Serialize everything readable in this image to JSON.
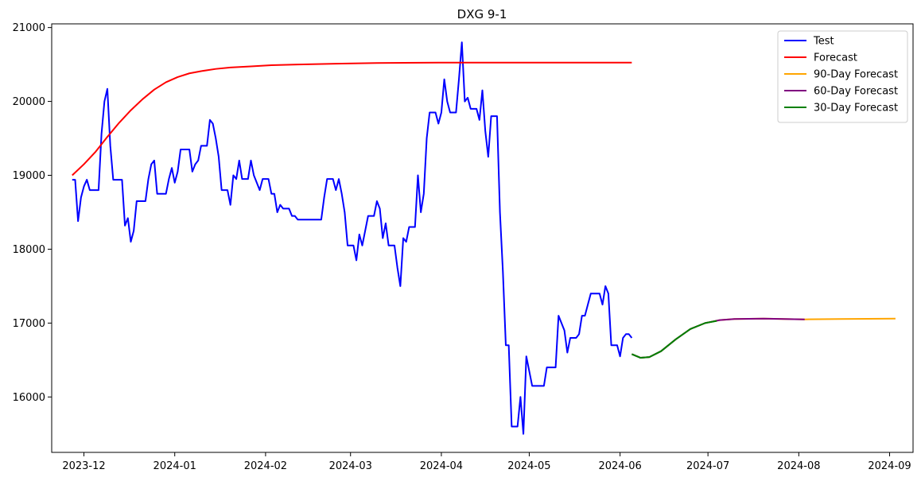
{
  "chart_data": {
    "type": "line",
    "title": "DXG 9-1",
    "xlabel": "",
    "ylabel": "",
    "x_ticks": [
      "2023-12",
      "2024-01",
      "2024-02",
      "2024-03",
      "2024-04",
      "2024-05",
      "2024-06",
      "2024-07",
      "2024-08",
      "2024-09"
    ],
    "y_ticks": [
      16000,
      17000,
      18000,
      19000,
      20000,
      21000
    ],
    "xlim": [
      "2023-11-20",
      "2024-09-09"
    ],
    "ylim": [
      15250,
      21050
    ],
    "grid": false,
    "legend_position": "top-right",
    "series": [
      {
        "name": "Test",
        "color": "#0000ff",
        "points": [
          [
            "2023-11-27",
            18940
          ],
          [
            "2023-11-28",
            18940
          ],
          [
            "2023-11-29",
            18380
          ],
          [
            "2023-11-30",
            18700
          ],
          [
            "2023-12-01",
            18850
          ],
          [
            "2023-12-02",
            18940
          ],
          [
            "2023-12-03",
            18800
          ],
          [
            "2023-12-05",
            18800
          ],
          [
            "2023-12-06",
            18800
          ],
          [
            "2023-12-07",
            19560
          ],
          [
            "2023-12-08",
            20000
          ],
          [
            "2023-12-09",
            20170
          ],
          [
            "2023-12-10",
            19400
          ],
          [
            "2023-12-11",
            18940
          ],
          [
            "2023-12-13",
            18940
          ],
          [
            "2023-12-14",
            18940
          ],
          [
            "2023-12-15",
            18320
          ],
          [
            "2023-12-16",
            18420
          ],
          [
            "2023-12-17",
            18100
          ],
          [
            "2023-12-18",
            18250
          ],
          [
            "2023-12-19",
            18650
          ],
          [
            "2023-12-22",
            18650
          ],
          [
            "2023-12-23",
            18950
          ],
          [
            "2023-12-24",
            19150
          ],
          [
            "2023-12-25",
            19200
          ],
          [
            "2023-12-26",
            18750
          ],
          [
            "2023-12-29",
            18750
          ],
          [
            "2023-12-30",
            18950
          ],
          [
            "2023-12-31",
            19100
          ],
          [
            "2024-01-01",
            18900
          ],
          [
            "2024-01-02",
            19050
          ],
          [
            "2024-01-03",
            19350
          ],
          [
            "2024-01-06",
            19350
          ],
          [
            "2024-01-07",
            19050
          ],
          [
            "2024-01-08",
            19150
          ],
          [
            "2024-01-09",
            19200
          ],
          [
            "2024-01-10",
            19400
          ],
          [
            "2024-01-12",
            19400
          ],
          [
            "2024-01-13",
            19750
          ],
          [
            "2024-01-14",
            19700
          ],
          [
            "2024-01-15",
            19500
          ],
          [
            "2024-01-16",
            19250
          ],
          [
            "2024-01-17",
            18800
          ],
          [
            "2024-01-19",
            18800
          ],
          [
            "2024-01-20",
            18600
          ],
          [
            "2024-01-21",
            19000
          ],
          [
            "2024-01-22",
            18950
          ],
          [
            "2024-01-23",
            19200
          ],
          [
            "2024-01-24",
            18950
          ],
          [
            "2024-01-26",
            18950
          ],
          [
            "2024-01-27",
            19200
          ],
          [
            "2024-01-28",
            19000
          ],
          [
            "2024-01-30",
            18800
          ],
          [
            "2024-01-31",
            18950
          ],
          [
            "2024-02-02",
            18950
          ],
          [
            "2024-02-03",
            18750
          ],
          [
            "2024-02-04",
            18750
          ],
          [
            "2024-02-05",
            18500
          ],
          [
            "2024-02-06",
            18600
          ],
          [
            "2024-02-07",
            18550
          ],
          [
            "2024-02-09",
            18550
          ],
          [
            "2024-02-10",
            18450
          ],
          [
            "2024-02-11",
            18450
          ],
          [
            "2024-02-12",
            18400
          ],
          [
            "2024-02-20",
            18400
          ],
          [
            "2024-02-21",
            18700
          ],
          [
            "2024-02-22",
            18950
          ],
          [
            "2024-02-24",
            18950
          ],
          [
            "2024-02-25",
            18800
          ],
          [
            "2024-02-26",
            18950
          ],
          [
            "2024-02-27",
            18750
          ],
          [
            "2024-02-28",
            18500
          ],
          [
            "2024-02-29",
            18050
          ],
          [
            "2024-03-02",
            18050
          ],
          [
            "2024-03-03",
            17850
          ],
          [
            "2024-03-04",
            18200
          ],
          [
            "2024-03-05",
            18050
          ],
          [
            "2024-03-07",
            18450
          ],
          [
            "2024-03-09",
            18450
          ],
          [
            "2024-03-10",
            18650
          ],
          [
            "2024-03-11",
            18550
          ],
          [
            "2024-03-12",
            18150
          ],
          [
            "2024-03-13",
            18350
          ],
          [
            "2024-03-14",
            18050
          ],
          [
            "2024-03-16",
            18050
          ],
          [
            "2024-03-17",
            17750
          ],
          [
            "2024-03-18",
            17500
          ],
          [
            "2024-03-19",
            18150
          ],
          [
            "2024-03-20",
            18100
          ],
          [
            "2024-03-21",
            18300
          ],
          [
            "2024-03-23",
            18300
          ],
          [
            "2024-03-24",
            19000
          ],
          [
            "2024-03-25",
            18500
          ],
          [
            "2024-03-26",
            18750
          ],
          [
            "2024-03-27",
            19500
          ],
          [
            "2024-03-28",
            19850
          ],
          [
            "2024-03-30",
            19850
          ],
          [
            "2024-03-31",
            19700
          ],
          [
            "2024-04-01",
            19850
          ],
          [
            "2024-04-02",
            20300
          ],
          [
            "2024-04-03",
            20000
          ],
          [
            "2024-04-04",
            19850
          ],
          [
            "2024-04-06",
            19850
          ],
          [
            "2024-04-07",
            20300
          ],
          [
            "2024-04-08",
            20800
          ],
          [
            "2024-04-09",
            20000
          ],
          [
            "2024-04-10",
            20050
          ],
          [
            "2024-04-11",
            19900
          ],
          [
            "2024-04-13",
            19900
          ],
          [
            "2024-04-14",
            19750
          ],
          [
            "2024-04-15",
            20150
          ],
          [
            "2024-04-16",
            19600
          ],
          [
            "2024-04-17",
            19250
          ],
          [
            "2024-04-18",
            19800
          ],
          [
            "2024-04-20",
            19800
          ],
          [
            "2024-04-21",
            18500
          ],
          [
            "2024-04-22",
            17700
          ],
          [
            "2024-04-23",
            16700
          ],
          [
            "2024-04-24",
            16700
          ],
          [
            "2024-04-25",
            15600
          ],
          [
            "2024-04-27",
            15600
          ],
          [
            "2024-04-28",
            16000
          ],
          [
            "2024-04-29",
            15500
          ],
          [
            "2024-04-30",
            16550
          ],
          [
            "2024-05-01",
            16350
          ],
          [
            "2024-05-02",
            16150
          ],
          [
            "2024-05-06",
            16150
          ],
          [
            "2024-05-07",
            16400
          ],
          [
            "2024-05-10",
            16400
          ],
          [
            "2024-05-11",
            17100
          ],
          [
            "2024-05-12",
            17000
          ],
          [
            "2024-05-13",
            16900
          ],
          [
            "2024-05-14",
            16600
          ],
          [
            "2024-05-15",
            16800
          ],
          [
            "2024-05-17",
            16800
          ],
          [
            "2024-05-18",
            16850
          ],
          [
            "2024-05-19",
            17100
          ],
          [
            "2024-05-20",
            17100
          ],
          [
            "2024-05-21",
            17250
          ],
          [
            "2024-05-22",
            17400
          ],
          [
            "2024-05-25",
            17400
          ],
          [
            "2024-05-26",
            17250
          ],
          [
            "2024-05-27",
            17500
          ],
          [
            "2024-05-28",
            17400
          ],
          [
            "2024-05-29",
            16700
          ],
          [
            "2024-05-31",
            16700
          ],
          [
            "2024-06-01",
            16550
          ],
          [
            "2024-06-02",
            16800
          ],
          [
            "2024-06-03",
            16850
          ],
          [
            "2024-06-04",
            16850
          ],
          [
            "2024-06-05",
            16800
          ]
        ]
      },
      {
        "name": "Forecast",
        "color": "#ff0000",
        "points": [
          [
            "2023-11-27",
            19000
          ],
          [
            "2023-12-01",
            19150
          ],
          [
            "2023-12-05",
            19320
          ],
          [
            "2023-12-09",
            19520
          ],
          [
            "2023-12-13",
            19710
          ],
          [
            "2023-12-17",
            19880
          ],
          [
            "2023-12-21",
            20030
          ],
          [
            "2023-12-25",
            20160
          ],
          [
            "2023-12-29",
            20260
          ],
          [
            "2024-01-02",
            20330
          ],
          [
            "2024-01-06",
            20380
          ],
          [
            "2024-01-10",
            20410
          ],
          [
            "2024-01-15",
            20440
          ],
          [
            "2024-01-20",
            20460
          ],
          [
            "2024-01-27",
            20475
          ],
          [
            "2024-02-03",
            20490
          ],
          [
            "2024-02-12",
            20500
          ],
          [
            "2024-02-25",
            20510
          ],
          [
            "2024-03-10",
            20520
          ],
          [
            "2024-03-31",
            20525
          ],
          [
            "2024-04-20",
            20525
          ],
          [
            "2024-05-10",
            20525
          ],
          [
            "2024-06-05",
            20525
          ]
        ]
      },
      {
        "name": "90-Day Forecast",
        "color": "#ffa500",
        "points": [
          [
            "2024-06-05",
            16580
          ],
          [
            "2024-06-08",
            16530
          ],
          [
            "2024-06-11",
            16540
          ],
          [
            "2024-06-15",
            16620
          ],
          [
            "2024-06-20",
            16780
          ],
          [
            "2024-06-25",
            16920
          ],
          [
            "2024-06-30",
            17000
          ],
          [
            "2024-07-05",
            17040
          ],
          [
            "2024-07-10",
            17055
          ],
          [
            "2024-07-20",
            17060
          ],
          [
            "2024-08-03",
            17050
          ],
          [
            "2024-08-15",
            17055
          ],
          [
            "2024-09-03",
            17060
          ]
        ]
      },
      {
        "name": "60-Day Forecast",
        "color": "#800080",
        "points": [
          [
            "2024-06-05",
            16580
          ],
          [
            "2024-06-08",
            16530
          ],
          [
            "2024-06-11",
            16540
          ],
          [
            "2024-06-15",
            16620
          ],
          [
            "2024-06-20",
            16780
          ],
          [
            "2024-06-25",
            16920
          ],
          [
            "2024-06-30",
            17000
          ],
          [
            "2024-07-05",
            17040
          ],
          [
            "2024-07-10",
            17055
          ],
          [
            "2024-07-20",
            17060
          ],
          [
            "2024-08-03",
            17050
          ]
        ]
      },
      {
        "name": "30-Day Forecast",
        "color": "#008000",
        "points": [
          [
            "2024-06-05",
            16580
          ],
          [
            "2024-06-08",
            16530
          ],
          [
            "2024-06-11",
            16540
          ],
          [
            "2024-06-15",
            16620
          ],
          [
            "2024-06-20",
            16780
          ],
          [
            "2024-06-25",
            16920
          ],
          [
            "2024-06-30",
            17000
          ],
          [
            "2024-07-04",
            17030
          ]
        ]
      }
    ]
  }
}
